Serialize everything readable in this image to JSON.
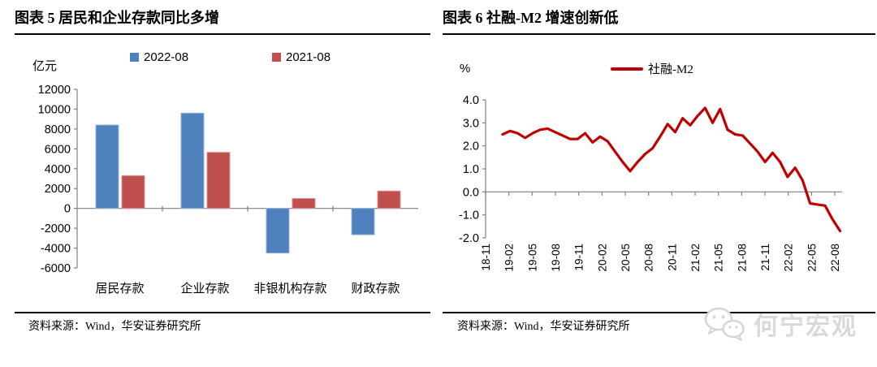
{
  "left_panel": {
    "title": "图表 5 居民和企业存款同比多增",
    "unit_label": "亿元",
    "legend": [
      {
        "label": "2022-08",
        "color": "#4F81BD"
      },
      {
        "label": "2021-08",
        "color": "#C0504D"
      }
    ],
    "source": "资料来源：Wind，华安证券研究所"
  },
  "right_panel": {
    "title": "图表 6 社融-M2 增速创新低",
    "unit_label": "%",
    "legend": [
      {
        "label": "社融-M2",
        "color": "#C00000"
      }
    ],
    "source": "资料来源：Wind，华安证券研究所"
  },
  "watermark": {
    "label": "何宁宏观",
    "icon": "wechat-icon",
    "color": "#d9d9d9"
  },
  "chart_data": [
    {
      "type": "bar",
      "title": "图表 5 居民和企业存款同比多增",
      "categories": [
        "居民存款",
        "企业存款",
        "非银机构存款",
        "财政存款"
      ],
      "series": [
        {
          "name": "2022-08",
          "color": "#4F81BD",
          "border": "#95B3D7",
          "values": [
            8400,
            9600,
            -4500,
            -2650
          ]
        },
        {
          "name": "2021-08",
          "color": "#C0504D",
          "border": "#D99694",
          "values": [
            3300,
            5650,
            1000,
            1750
          ]
        }
      ],
      "xlabel": "",
      "ylabel": "亿元",
      "ylim": [
        -6000,
        12000
      ],
      "ytick_step": 2000,
      "ytick_labels": [
        "12000",
        "10000",
        "8000",
        "6000",
        "4000",
        "2000",
        "0",
        "-2000",
        "-4000",
        "-6000"
      ],
      "legend_position": "top",
      "grid": false,
      "axis_color": "#808080"
    },
    {
      "type": "line",
      "title": "图表 6 社融-M2 增速创新低",
      "x": [
        "18-11",
        "18-12",
        "19-01",
        "19-02",
        "19-03",
        "19-04",
        "19-05",
        "19-06",
        "19-07",
        "19-08",
        "19-09",
        "19-10",
        "19-11",
        "19-12",
        "20-01",
        "20-02",
        "20-03",
        "20-04",
        "20-05",
        "20-06",
        "20-07",
        "20-08",
        "20-09",
        "20-10",
        "20-11",
        "20-12",
        "21-01",
        "21-02",
        "21-03",
        "21-04",
        "21-05",
        "21-06",
        "21-07",
        "21-08",
        "21-09",
        "21-10",
        "21-11",
        "21-12",
        "22-01",
        "22-02",
        "22-03",
        "22-04",
        "22-05",
        "22-06",
        "22-07",
        "22-08"
      ],
      "series": [
        {
          "name": "社融-M2",
          "color": "#C00000",
          "values": [
            2.5,
            2.65,
            2.55,
            2.35,
            2.55,
            2.7,
            2.75,
            2.6,
            2.45,
            2.3,
            2.3,
            2.55,
            2.15,
            2.4,
            2.2,
            1.75,
            1.3,
            0.9,
            1.3,
            1.65,
            1.9,
            2.4,
            2.95,
            2.6,
            3.2,
            2.9,
            3.3,
            3.65,
            3.0,
            3.6,
            2.7,
            2.5,
            2.45,
            2.1,
            1.75,
            1.3,
            1.7,
            1.3,
            0.65,
            1.05,
            0.5,
            -0.5,
            -0.55,
            -0.6,
            -1.2,
            -1.7
          ]
        }
      ],
      "xtick_labels": [
        "18-11",
        "19-02",
        "19-05",
        "19-08",
        "19-11",
        "20-02",
        "20-05",
        "20-08",
        "20-11",
        "21-02",
        "21-05",
        "21-08",
        "21-11",
        "22-02",
        "22-05",
        "22-08"
      ],
      "xlabel": "",
      "ylabel": "%",
      "ylim": [
        -2.0,
        4.0
      ],
      "ytick_step": 1.0,
      "ytick_labels": [
        "4.0",
        "3.0",
        "2.0",
        "1.0",
        "0.0",
        "-1.0",
        "-2.0"
      ],
      "legend_position": "top",
      "grid": false,
      "axis_color": "#808080"
    }
  ]
}
